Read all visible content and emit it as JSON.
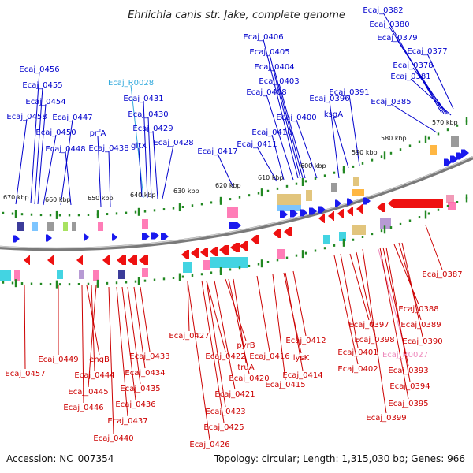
{
  "title": "Ehrlichia canis str. Jake, complete genome",
  "accession": "Accession: NC_007354",
  "summary": "Topology: circular; Length: 1,315,030 bp; Genes: 966",
  "colors": {
    "backbone": "#888888",
    "plus_strand_label": "#0000cc",
    "minus_strand_label": "#cc0000",
    "rna_plus_label": "#33aadd",
    "rna_minus_label": "#ee88bb",
    "plus_arrow": "#1a1aee",
    "minus_arrow": "#ee1111",
    "tick": "#228822"
  },
  "kbp_ticks": [
    "570 kbp",
    "580 kbp",
    "590 kbp",
    "600 kbp",
    "610 kbp",
    "620 kbp",
    "630 kbp",
    "640 kbp",
    "650 kbp",
    "660 kbp",
    "670 kbp"
  ],
  "top_labels": [
    "Ecaj_0456",
    "Ecaj_0455",
    "Ecaj_0454",
    "Ecaj_0458",
    "Ecaj_0450",
    "Ecaj_0447",
    "Ecaj_0448",
    "prfA",
    "Ecaj_0438",
    "Ecaj_R0028",
    "Ecaj_0431",
    "Ecaj_0430",
    "Ecaj_0429",
    "gltX",
    "Ecaj_0428",
    "Ecaj_0417",
    "Ecaj_0406",
    "Ecaj_0405",
    "Ecaj_0404",
    "Ecaj_0403",
    "Ecaj_0408",
    "Ecaj_0410",
    "Ecaj_0411",
    "Ecaj_0396",
    "Ecaj_0400",
    "ksgA",
    "Ecaj_0391",
    "Ecaj_0382",
    "Ecaj_0380",
    "Ecaj_0379",
    "Ecaj_0377",
    "Ecaj_0378",
    "Ecaj_0381",
    "Ecaj_0385"
  ],
  "bottom_labels": [
    "Ecaj_0457",
    "Ecaj_0449",
    "engB",
    "Ecaj_0444",
    "Ecaj_0445",
    "Ecaj_0446",
    "Ecaj_0440",
    "Ecaj_0437",
    "Ecaj_0436",
    "Ecaj_0435",
    "Ecaj_0434",
    "Ecaj_0433",
    "Ecaj_0427",
    "Ecaj_0422",
    "Ecaj_0421",
    "Ecaj_0423",
    "Ecaj_0425",
    "Ecaj_0426",
    "pyrB",
    "truA",
    "Ecaj_0420",
    "Ecaj_0416",
    "Ecaj_0415",
    "Ecaj_0414",
    "lysK",
    "Ecaj_0412",
    "Ecaj_0397",
    "Ecaj_0398",
    "Ecaj_0401",
    "Ecaj_0402",
    "Ecaj_R0027",
    "Ecaj_0399",
    "Ecaj_0393",
    "Ecaj_0394",
    "Ecaj_0395",
    "Ecaj_0388",
    "Ecaj_0389",
    "Ecaj_0390",
    "Ecaj_0387"
  ]
}
